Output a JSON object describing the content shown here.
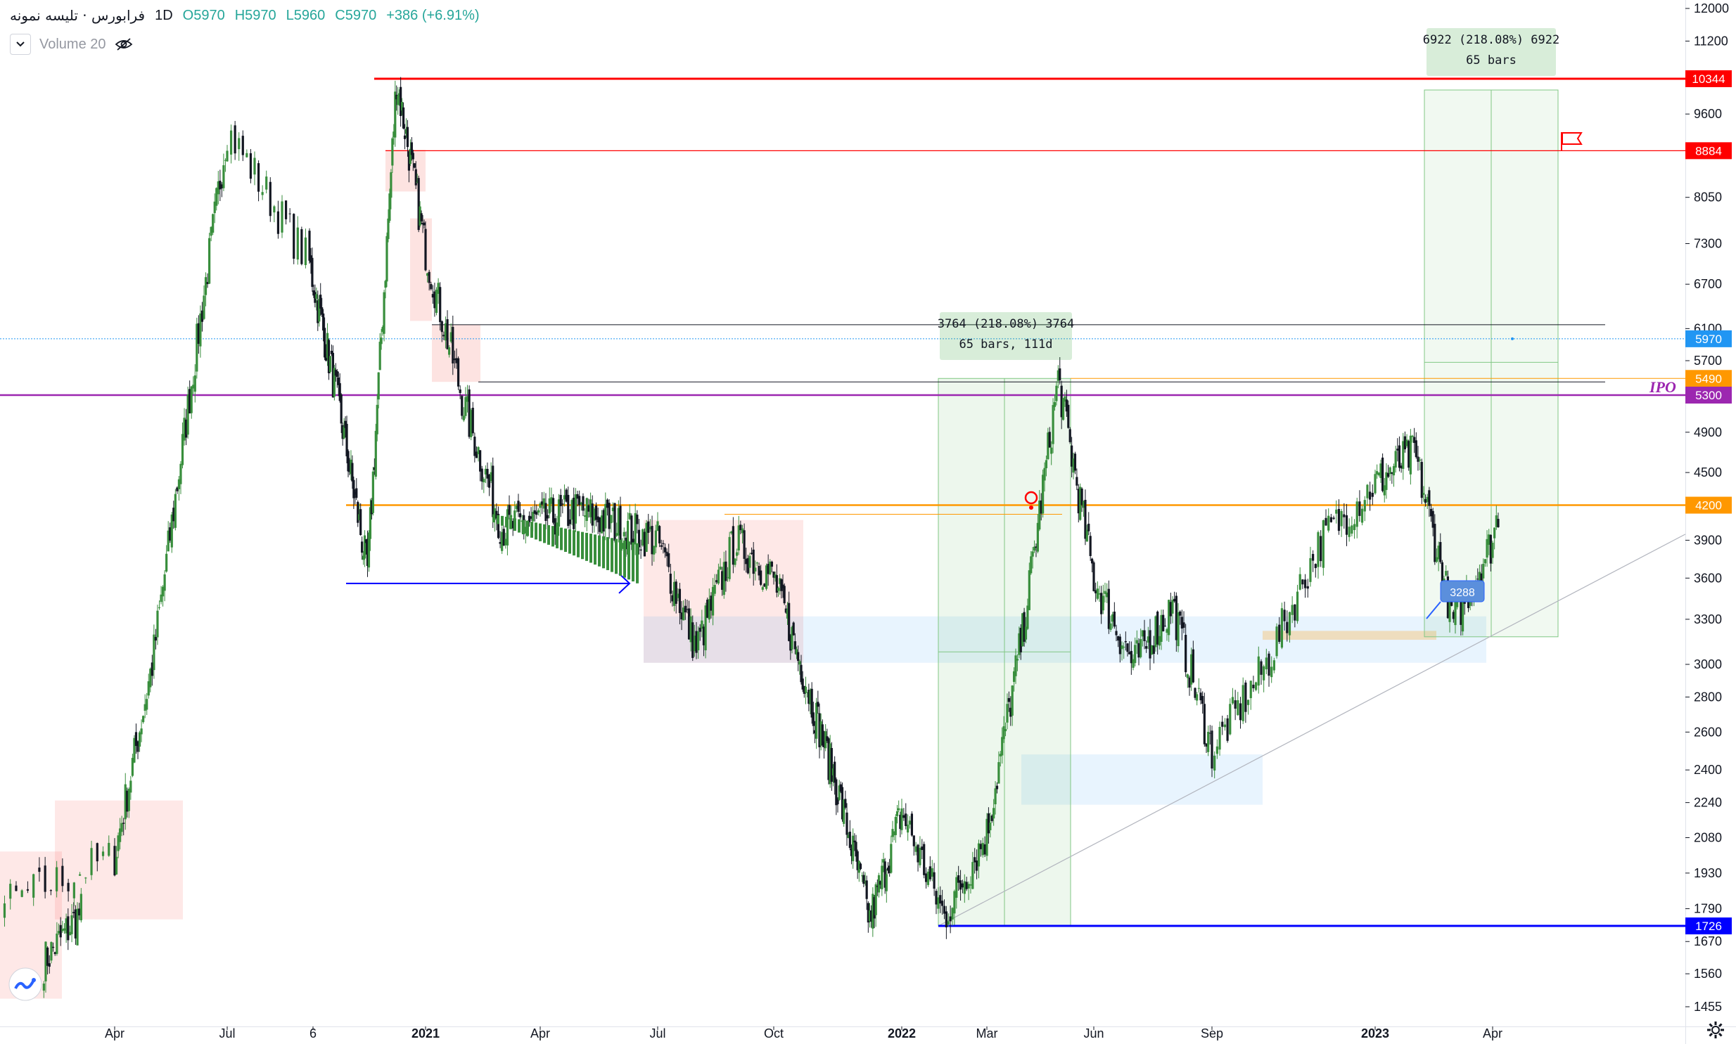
{
  "legend": {
    "symbol": "فرابورس · تلیسه نمونه",
    "interval": "1D",
    "open": "O5970",
    "high": "H5970",
    "low": "L5960",
    "close": "C5970",
    "change": "+386 (+6.91%)"
  },
  "volume": {
    "label": "Volume 20",
    "collapse_icon": "chevron-down-icon",
    "visibility_icon": "eye-crossed-icon"
  },
  "colors": {
    "up": "#388e3c",
    "down": "#131722",
    "resistance": "#ff0000",
    "support": "#0000ff",
    "ipo": "#9c27b0",
    "level_4200": "#ff9800",
    "last_price": "#2196f3"
  },
  "price_axis": [
    "12000",
    "11200",
    "10344",
    "9600",
    "8884",
    "8050",
    "7300",
    "6700",
    "6100",
    "5970",
    "5700",
    "5490",
    "5300",
    "4900",
    "4500",
    "4200",
    "3900",
    "3600",
    "3300",
    "3000",
    "2800",
    "2600",
    "2400",
    "2240",
    "2080",
    "1930",
    "1790",
    "1726",
    "1670",
    "1560",
    "1455"
  ],
  "time_axis": [
    "Apr",
    "Jul",
    "6",
    "2021",
    "Apr",
    "Jul",
    "Oct",
    "2022",
    "Mar",
    "Jun",
    "Sep",
    "2023",
    "Apr"
  ],
  "levels": [
    {
      "name": "resistance-10344",
      "value": "10344",
      "color": "#ff0000"
    },
    {
      "name": "resistance-8884",
      "value": "8884",
      "color": "#ff0000"
    },
    {
      "name": "last-price",
      "value": "5970",
      "color": "#2196f3"
    },
    {
      "name": "level-5490",
      "value": "5490",
      "color": "#ff9800"
    },
    {
      "name": "ipo-line",
      "value": "5300",
      "color": "#9c27b0"
    },
    {
      "name": "level-4200",
      "value": "4200",
      "color": "#ff9800"
    },
    {
      "name": "support-1726",
      "value": "1726",
      "color": "#0000ff"
    }
  ],
  "annotations": {
    "ipo_label": "IPO",
    "measure1_line1": "3764 (218.08%) 3764",
    "measure1_line2": "65 bars, 111d",
    "measure2_line1": "6922 (218.08%) 6922",
    "measure2_line2": "65 bars",
    "price_note": "3288"
  },
  "chart_data": {
    "type": "candlestick",
    "title": "",
    "ylabel": "",
    "ylim": [
      1400,
      12100
    ],
    "y_scale": "log",
    "grid": false,
    "x_ticks": [
      "Apr",
      "Jul",
      "6",
      "2021",
      "Apr",
      "Jul",
      "Oct",
      "2022",
      "Mar",
      "Jun",
      "Sep",
      "2023",
      "Apr"
    ],
    "close_path": [
      {
        "t": "Feb 2020",
        "close": 1600
      },
      {
        "t": "Apr 2020",
        "close": 2000
      },
      {
        "t": "May 2020",
        "close": 3000
      },
      {
        "t": "Jun 2020",
        "close": 5300
      },
      {
        "t": "Jul 2020",
        "close": 9300
      },
      {
        "t": "Aug 2020",
        "close": 7000
      },
      {
        "t": "Sep 2020",
        "close": 5200
      },
      {
        "t": "Oct 2020",
        "close": 3650
      },
      {
        "t": "Nov 2020",
        "close": 10344
      },
      {
        "t": "Dec 2020",
        "close": 7200
      },
      {
        "t": "Jan 2021",
        "close": 5200
      },
      {
        "t": "Feb 2021",
        "close": 4000
      },
      {
        "t": "Apr 2021",
        "close": 4150
      },
      {
        "t": "Jun 2021",
        "close": 3900
      },
      {
        "t": "Jul 2021",
        "close": 3100
      },
      {
        "t": "Aug 2021",
        "close": 3900
      },
      {
        "t": "Sep 2021",
        "close": 3600
      },
      {
        "t": "Oct 2021",
        "close": 2900
      },
      {
        "t": "Nov 2021",
        "close": 2300
      },
      {
        "t": "Dec 2021",
        "close": 1750
      },
      {
        "t": "Jan 2022",
        "close": 2200
      },
      {
        "t": "Feb 2022",
        "close": 1760
      },
      {
        "t": "Mar 2022",
        "close": 2100
      },
      {
        "t": "Apr 2022",
        "close": 3200
      },
      {
        "t": "May 2022",
        "close": 5490
      },
      {
        "t": "Jun 2022",
        "close": 3600
      },
      {
        "t": "Jul 2022",
        "close": 3000
      },
      {
        "t": "Aug 2022",
        "close": 3400
      },
      {
        "t": "Sep 2022",
        "close": 2500
      },
      {
        "t": "Oct 2022",
        "close": 3000
      },
      {
        "t": "Nov 2022",
        "close": 3900
      },
      {
        "t": "Dec 2022",
        "close": 4400
      },
      {
        "t": "Jan 2023",
        "close": 4700
      },
      {
        "t": "Feb 2023",
        "close": 3288
      },
      {
        "t": "Mar 2023",
        "close": 3900
      },
      {
        "t": "Apr 2023",
        "close": 5970
      }
    ]
  }
}
